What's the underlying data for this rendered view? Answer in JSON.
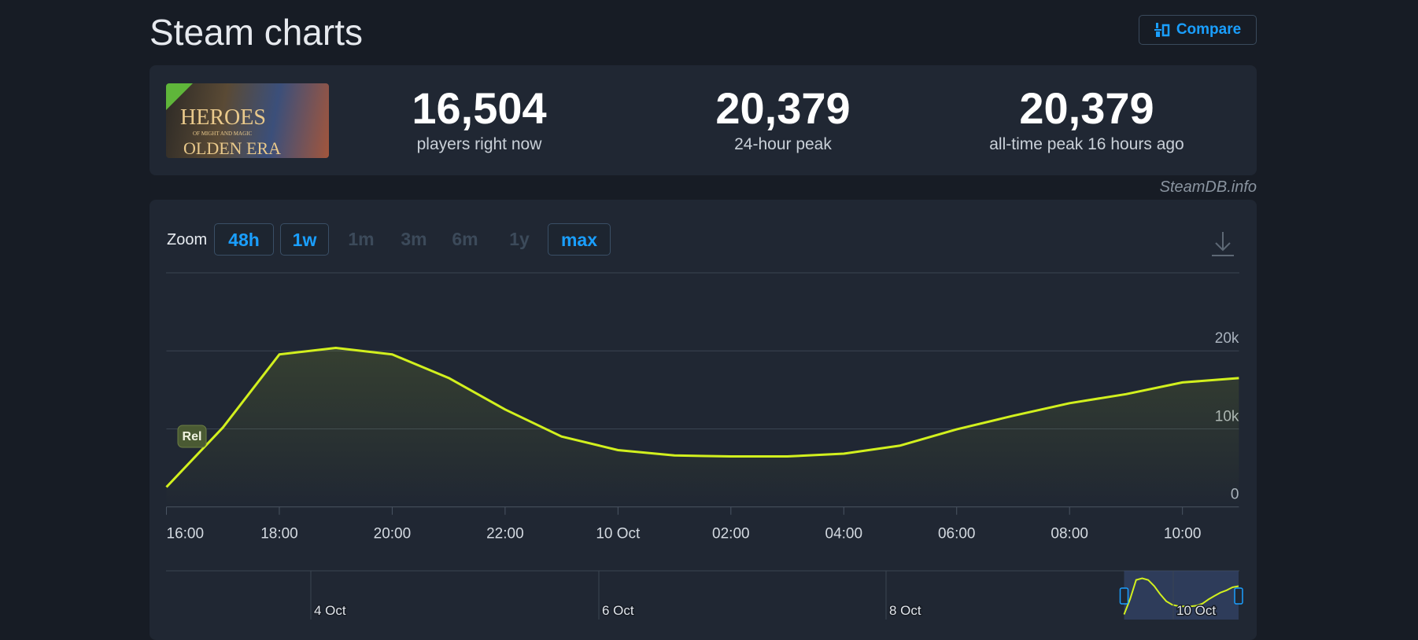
{
  "header": {
    "title": "Steam charts",
    "compare": "Compare"
  },
  "game_logo": [
    "HEROES",
    "OF MIGHT AND MAGIC",
    "OLDEN ERA"
  ],
  "stats": [
    {
      "value": "16,504",
      "label": "players right now"
    },
    {
      "value": "20,379",
      "label": "24-hour peak"
    },
    {
      "value": "20,379",
      "label": "all-time peak 16 hours ago"
    }
  ],
  "source": "SteamDB.info",
  "zoom": {
    "label": "Zoom",
    "buttons": [
      {
        "text": "48h",
        "active": true
      },
      {
        "text": "1w",
        "active": true
      },
      {
        "text": "1m",
        "active": false
      },
      {
        "text": "3m",
        "active": false
      },
      {
        "text": "6m",
        "active": false
      },
      {
        "text": "1y",
        "active": false
      },
      {
        "text": "max",
        "active": true
      }
    ]
  },
  "chart_data": {
    "type": "line",
    "color": "#d2f01e",
    "categories": [
      "16:00",
      null,
      "18:00",
      null,
      "20:00",
      null,
      "22:00",
      null,
      "10 Oct",
      null,
      "02:00",
      null,
      "04:00",
      null,
      "06:00",
      null,
      "08:00",
      null,
      "10:00",
      null
    ],
    "values": [
      2540,
      10170,
      19540,
      20379,
      19540,
      16530,
      12490,
      9020,
      7280,
      6590,
      6470,
      6470,
      6820,
      7860,
      9940,
      11680,
      13290,
      14450,
      15950,
      16504
    ],
    "ylim": [
      0,
      30000
    ],
    "yticks": [
      0,
      {
        "value": 10000,
        "label": "10k"
      },
      {
        "value": 20000,
        "label": "20k"
      }
    ],
    "grid": true,
    "annotation": "Rel"
  },
  "navigator": {
    "labels": [
      "4 Oct",
      "6 Oct",
      "8 Oct",
      "10 Oct"
    ]
  }
}
